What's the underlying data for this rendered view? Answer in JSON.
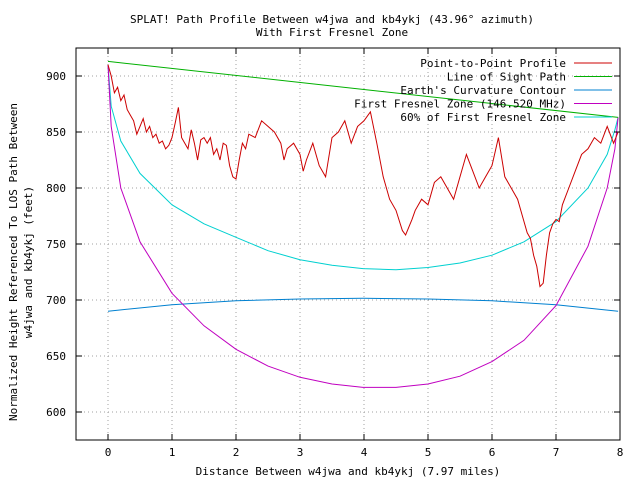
{
  "chart_data": {
    "type": "line",
    "title": "SPLAT! Path Profile Between w4jwa and kb4ykj (43.96° azimuth)",
    "subtitle": "With First Fresnel Zone",
    "xlabel": "Distance Between w4jwa and kb4ykj (7.97 miles)",
    "ylabel_line1": "Normalized Height Referenced To LOS Path Between",
    "ylabel_line2": "w4jwa and kb4ykj (feet)",
    "xlim": [
      -0.5,
      8
    ],
    "ylim": [
      575,
      925
    ],
    "x_ticks": [
      0,
      1,
      2,
      3,
      4,
      5,
      6,
      7,
      8
    ],
    "y_ticks": [
      600,
      650,
      700,
      750,
      800,
      850,
      900
    ],
    "grid": true,
    "legend_position": "top-right",
    "series": [
      {
        "name": "Point-to-Point Profile",
        "color": "#cc0000",
        "x": [
          0.0,
          0.05,
          0.1,
          0.15,
          0.2,
          0.25,
          0.3,
          0.35,
          0.4,
          0.45,
          0.5,
          0.55,
          0.6,
          0.65,
          0.7,
          0.75,
          0.8,
          0.85,
          0.9,
          0.95,
          1.0,
          1.05,
          1.1,
          1.15,
          1.2,
          1.25,
          1.3,
          1.35,
          1.4,
          1.45,
          1.5,
          1.55,
          1.6,
          1.65,
          1.7,
          1.75,
          1.8,
          1.85,
          1.9,
          1.95,
          2.0,
          2.05,
          2.1,
          2.15,
          2.2,
          2.3,
          2.4,
          2.5,
          2.6,
          2.7,
          2.75,
          2.8,
          2.9,
          3.0,
          3.05,
          3.1,
          3.2,
          3.3,
          3.4,
          3.5,
          3.6,
          3.7,
          3.8,
          3.9,
          4.0,
          4.1,
          4.2,
          4.3,
          4.4,
          4.5,
          4.6,
          4.65,
          4.7,
          4.75,
          4.8,
          4.9,
          5.0,
          5.1,
          5.2,
          5.3,
          5.4,
          5.5,
          5.6,
          5.7,
          5.8,
          5.9,
          6.0,
          6.1,
          6.2,
          6.3,
          6.4,
          6.5,
          6.55,
          6.6,
          6.65,
          6.7,
          6.75,
          6.8,
          6.85,
          6.9,
          6.95,
          7.0,
          7.05,
          7.1,
          7.2,
          7.3,
          7.4,
          7.5,
          7.6,
          7.7,
          7.8,
          7.9,
          7.97
        ],
        "y": [
          910,
          900,
          885,
          890,
          878,
          883,
          870,
          865,
          860,
          848,
          855,
          862,
          850,
          855,
          845,
          848,
          840,
          842,
          835,
          838,
          845,
          858,
          872,
          845,
          840,
          835,
          852,
          840,
          825,
          843,
          845,
          840,
          845,
          830,
          835,
          825,
          840,
          838,
          820,
          810,
          808,
          825,
          840,
          835,
          848,
          845,
          860,
          855,
          850,
          840,
          825,
          835,
          840,
          830,
          815,
          825,
          840,
          820,
          810,
          845,
          850,
          860,
          840,
          855,
          860,
          868,
          840,
          810,
          790,
          780,
          762,
          758,
          765,
          772,
          780,
          790,
          785,
          805,
          810,
          800,
          790,
          810,
          830,
          815,
          800,
          810,
          820,
          845,
          810,
          800,
          790,
          770,
          760,
          755,
          740,
          730,
          712,
          715,
          740,
          760,
          768,
          772,
          770,
          785,
          800,
          815,
          830,
          835,
          845,
          840,
          855,
          840,
          850
        ]
      },
      {
        "name": "Line of Sight Path",
        "color": "#00b000",
        "x": [
          0,
          7.97
        ],
        "y": [
          913,
          863
        ]
      },
      {
        "name": "Earth's Curvature Contour",
        "color": "#0080d0",
        "x": [
          0,
          1,
          2,
          3,
          3.985,
          5,
          6,
          7,
          7.97
        ],
        "y": [
          690,
          695.8,
          699.3,
          700.9,
          701.5,
          700.9,
          699.3,
          695.8,
          690
        ]
      },
      {
        "name": "First Fresnel Zone (146.520 MHz)",
        "color": "#c000c0",
        "x": [
          0,
          0.05,
          0.2,
          0.5,
          1,
          1.5,
          2,
          2.5,
          3,
          3.5,
          3.985,
          4.5,
          5,
          5.5,
          6,
          6.5,
          7,
          7.5,
          7.8,
          7.92,
          7.97
        ],
        "y": [
          910,
          855,
          800,
          752,
          706,
          677,
          656,
          641,
          631,
          625,
          622,
          622,
          625,
          632,
          645,
          664,
          695,
          748,
          800,
          835,
          863
        ]
      },
      {
        "name": "60% of First Fresnel Zone",
        "color": "#00d0d0",
        "x": [
          0,
          0.05,
          0.2,
          0.5,
          1,
          1.5,
          2,
          2.5,
          3,
          3.5,
          3.985,
          4.5,
          5,
          5.5,
          6,
          6.5,
          7,
          7.5,
          7.8,
          7.92,
          7.97
        ],
        "y": [
          910,
          873,
          842,
          813,
          785,
          768,
          756,
          744,
          736,
          731,
          728,
          727,
          729,
          733,
          740,
          752,
          770,
          800,
          830,
          852,
          863
        ]
      }
    ]
  }
}
